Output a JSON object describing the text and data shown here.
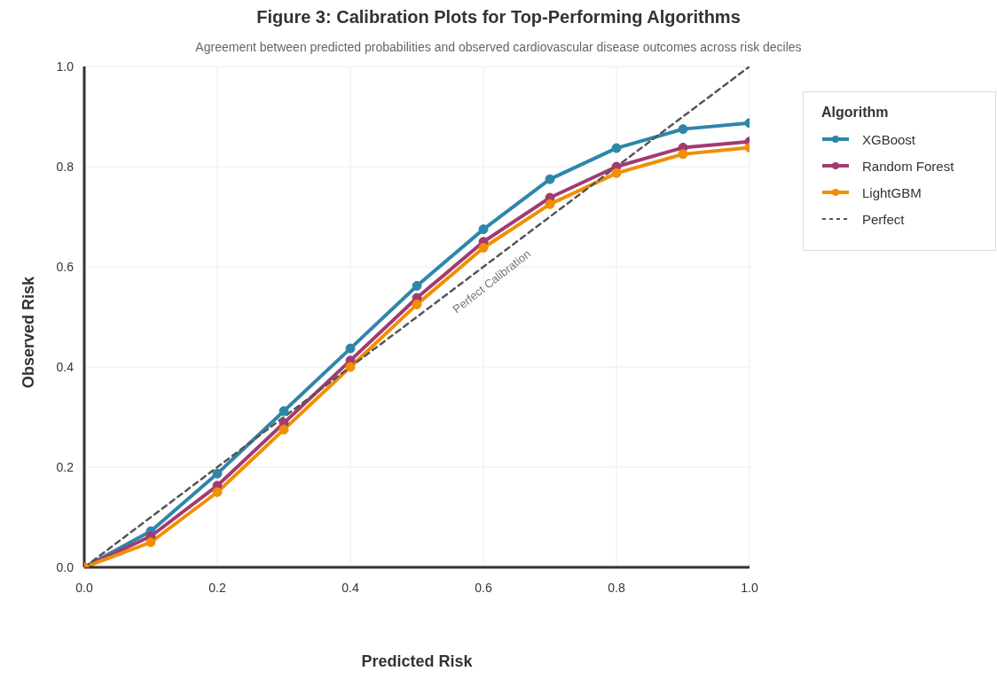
{
  "chart_data": {
    "type": "line",
    "title": "Figure 3: Calibration Plots for Top-Performing Algorithms",
    "subtitle": "Agreement between predicted probabilities and observed cardiovascular disease outcomes across risk deciles",
    "xlabel": "Predicted Risk",
    "ylabel": "Observed Risk",
    "legend_title": "Algorithm",
    "x": [
      0,
      0.1,
      0.2,
      0.3,
      0.4,
      0.5,
      0.6,
      0.7,
      0.8,
      0.9,
      1.0
    ],
    "series": [
      {
        "name": "XGBoost",
        "color": "#2e86ab",
        "values": [
          0,
          0.072,
          0.187,
          0.312,
          0.437,
          0.562,
          0.675,
          0.775,
          0.837,
          0.875,
          0.887
        ]
      },
      {
        "name": "Random Forest",
        "color": "#a23b72",
        "values": [
          0,
          0.062,
          0.163,
          0.288,
          0.413,
          0.538,
          0.65,
          0.738,
          0.8,
          0.838,
          0.85
        ]
      },
      {
        "name": "LightGBM",
        "color": "#f18f01",
        "values": [
          0,
          0.05,
          0.15,
          0.275,
          0.4,
          0.525,
          0.638,
          0.725,
          0.787,
          0.825,
          0.838
        ]
      },
      {
        "name": "Perfect",
        "color": "#555555",
        "x": [
          0,
          1
        ],
        "values": [
          0,
          1
        ],
        "line_style": "dashed",
        "marker": "none"
      }
    ],
    "annotations": [
      {
        "text": "Perfect Calibration",
        "x": 0.6,
        "y": 0.6
      }
    ],
    "xlim": [
      0,
      1
    ],
    "ylim": [
      0,
      1
    ],
    "xticks": [
      {
        "value": 0,
        "label": "0.0"
      },
      {
        "value": 0.2,
        "label": "0.2"
      },
      {
        "value": 0.4,
        "label": "0.4"
      },
      {
        "value": 0.6,
        "label": "0.6"
      },
      {
        "value": 0.8,
        "label": "0.8"
      },
      {
        "value": 1,
        "label": "1.0"
      }
    ],
    "yticks": [
      {
        "value": 0,
        "label": "0.0"
      },
      {
        "value": 0.2,
        "label": "0.2"
      },
      {
        "value": 0.4,
        "label": "0.4"
      },
      {
        "value": 0.6,
        "label": "0.6"
      },
      {
        "value": 0.8,
        "label": "0.8"
      },
      {
        "value": 1,
        "label": "1.0"
      }
    ],
    "grid": true,
    "legend": "right",
    "marker": "circle",
    "line_style": "solid"
  }
}
